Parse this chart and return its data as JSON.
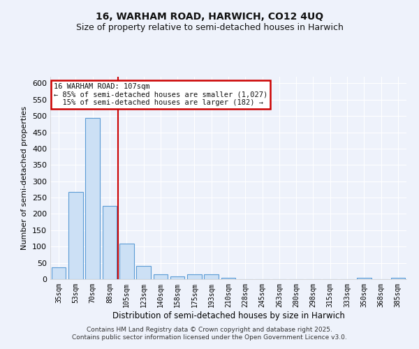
{
  "title1": "16, WARHAM ROAD, HARWICH, CO12 4UQ",
  "title2": "Size of property relative to semi-detached houses in Harwich",
  "xlabel": "Distribution of semi-detached houses by size in Harwich",
  "ylabel": "Number of semi-detached properties",
  "categories": [
    "35sqm",
    "53sqm",
    "70sqm",
    "88sqm",
    "105sqm",
    "123sqm",
    "140sqm",
    "158sqm",
    "175sqm",
    "193sqm",
    "210sqm",
    "228sqm",
    "245sqm",
    "263sqm",
    "280sqm",
    "298sqm",
    "315sqm",
    "333sqm",
    "350sqm",
    "368sqm",
    "385sqm"
  ],
  "values": [
    36,
    267,
    493,
    224,
    109,
    40,
    16,
    9,
    15,
    14,
    5,
    0,
    0,
    0,
    0,
    0,
    0,
    0,
    4,
    0,
    5
  ],
  "bar_color": "#cce0f5",
  "bar_edge_color": "#5b9bd5",
  "red_line_x": 3.5,
  "annotation_text": "16 WARHAM ROAD: 107sqm\n← 85% of semi-detached houses are smaller (1,027)\n  15% of semi-detached houses are larger (182) →",
  "annotation_box_color": "#ffffff",
  "annotation_box_edge": "#cc0000",
  "red_line_color": "#cc0000",
  "ylim": [
    0,
    620
  ],
  "yticks": [
    0,
    50,
    100,
    150,
    200,
    250,
    300,
    350,
    400,
    450,
    500,
    550,
    600
  ],
  "footer": "Contains HM Land Registry data © Crown copyright and database right 2025.\nContains public sector information licensed under the Open Government Licence v3.0.",
  "bg_color": "#eef2fb",
  "grid_color": "#ffffff",
  "title1_fontsize": 10,
  "title2_fontsize": 9
}
